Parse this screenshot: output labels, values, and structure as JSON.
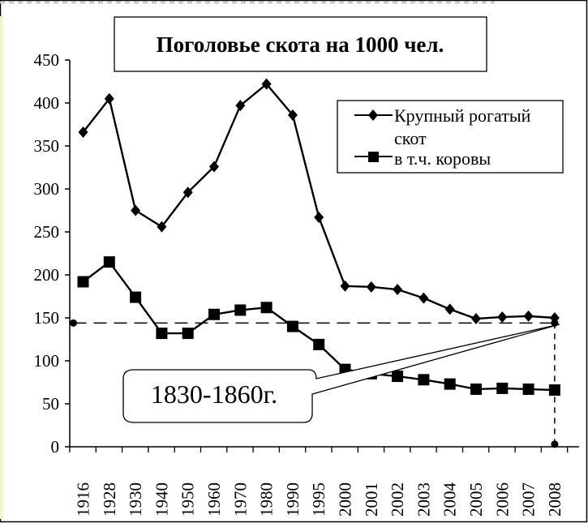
{
  "chart_data": {
    "type": "line",
    "title": "Поголовье скота на 1000 чел.",
    "xlabel": "",
    "ylabel": "",
    "ylim": [
      0,
      450
    ],
    "yticks": [
      0,
      50,
      100,
      150,
      200,
      250,
      300,
      350,
      400,
      450
    ],
    "categories": [
      "1916",
      "1928",
      "1930",
      "1940",
      "1950",
      "1960",
      "1970",
      "1980",
      "1990",
      "1995",
      "2000",
      "2001",
      "2002",
      "2003",
      "2004",
      "2005",
      "2006",
      "2007",
      "2008"
    ],
    "series": [
      {
        "name": "Крупный рогатый скот",
        "marker": "diamond",
        "values": [
          366,
          405,
          275,
          256,
          296,
          326,
          397,
          422,
          386,
          267,
          187,
          186,
          183,
          173,
          160,
          149,
          151,
          152,
          150
        ]
      },
      {
        "name": "в т.ч. коровы",
        "marker": "square",
        "values": [
          192,
          215,
          174,
          132,
          132,
          154,
          159,
          162,
          140,
          119,
          90,
          85,
          82,
          78,
          73,
          67,
          68,
          67,
          66
        ]
      }
    ],
    "reference_level": 144,
    "reference_bottom": 3,
    "legend": {
      "line1": "Крупный рогатый",
      "line2": "скот",
      "cows": "в т.ч. коровы"
    },
    "callout": "1830-1860г."
  }
}
